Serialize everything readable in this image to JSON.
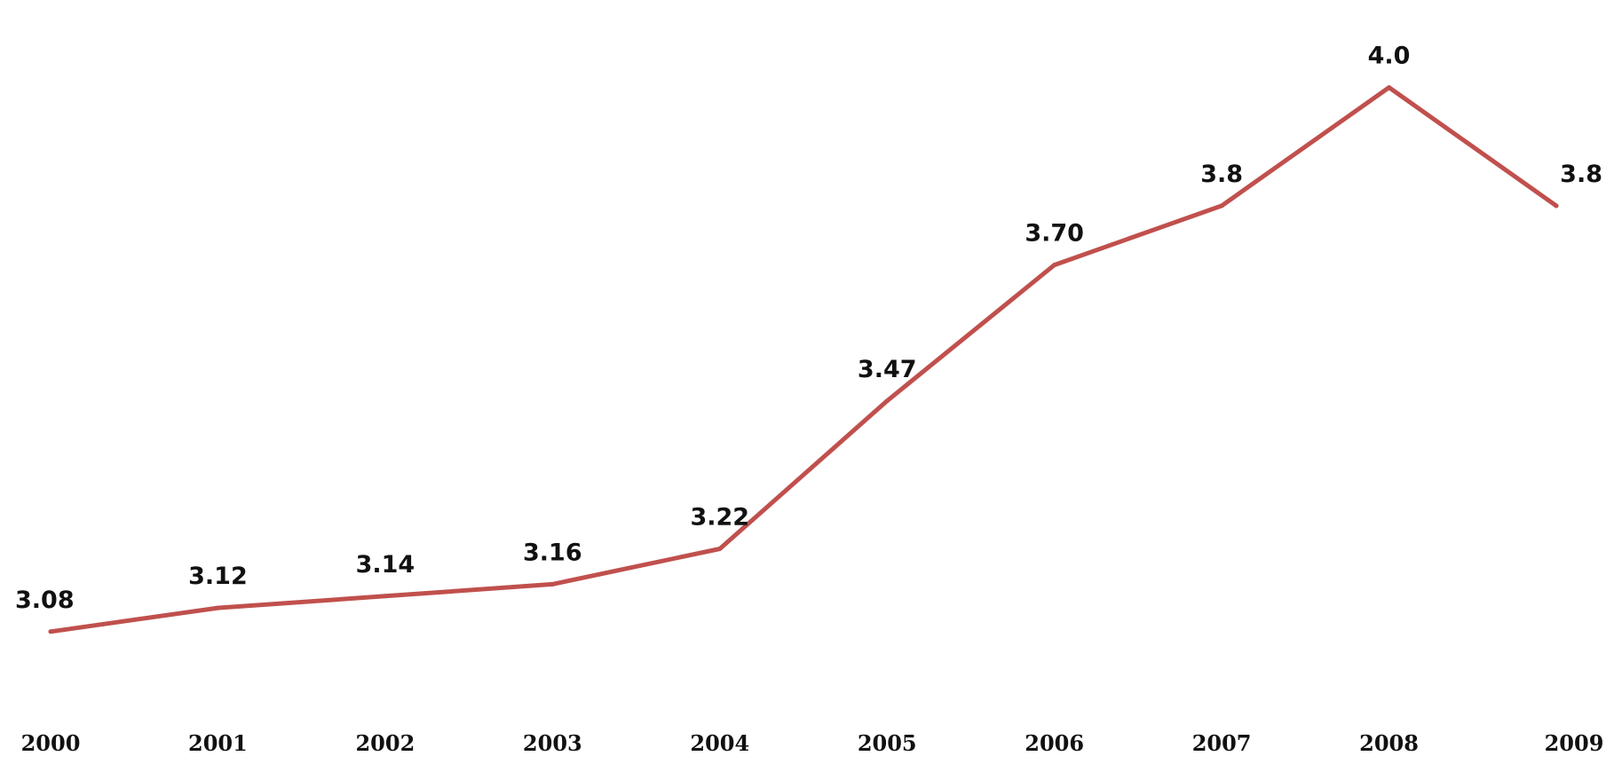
{
  "chart_data": {
    "type": "line",
    "title": "",
    "xlabel": "",
    "ylabel": "",
    "categories": [
      "2000",
      "2001",
      "2002",
      "2003",
      "2004",
      "2005",
      "2006",
      "2007",
      "2008",
      "2009"
    ],
    "values": [
      3.08,
      3.12,
      3.14,
      3.16,
      3.22,
      3.47,
      3.7,
      3.8,
      4.0,
      3.8
    ],
    "labels": [
      "3.08",
      "3.12",
      "3.14",
      "3.16",
      "3.22",
      "3.47",
      "3.70",
      "3.8",
      "4.0",
      "3.8"
    ],
    "ylim": [
      2.7,
      4.1
    ],
    "grid": false,
    "legend": "none",
    "y_axis_visible": false,
    "line_color": "#c0504d"
  }
}
